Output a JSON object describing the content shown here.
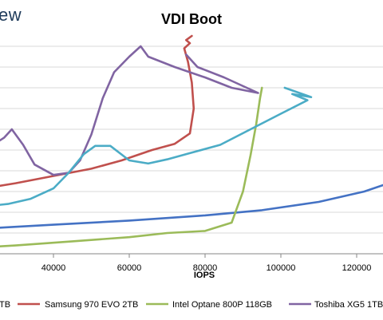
{
  "brand": {
    "text": "ew"
  },
  "chart_data": {
    "type": "line",
    "title": "VDI Boot",
    "xlabel": "IOPS",
    "ylabel": "",
    "xlim": [
      0,
      130000
    ],
    "ylim": [
      0,
      20
    ],
    "x_ticks": [
      "40000",
      "60000",
      "80000",
      "100000",
      "120000"
    ],
    "grid": "horizontal",
    "legend_position": "bottom",
    "legend_partial_first": "TB",
    "series": [
      {
        "name": "",
        "color": "#4472c4",
        "points": [
          [
            0,
            2.0
          ],
          [
            20000,
            2.4
          ],
          [
            40000,
            2.8
          ],
          [
            60000,
            3.2
          ],
          [
            80000,
            3.7
          ],
          [
            95000,
            4.2
          ],
          [
            110000,
            5.0
          ],
          [
            122000,
            6.0
          ],
          [
            130000,
            7.0
          ]
        ]
      },
      {
        "name": "Samsung 970 EVO 2TB",
        "color": "#c0504d",
        "points": [
          [
            0,
            5.0
          ],
          [
            10000,
            5.6
          ],
          [
            20000,
            6.2
          ],
          [
            30000,
            6.8
          ],
          [
            40000,
            7.5
          ],
          [
            50000,
            8.2
          ],
          [
            58000,
            9.0
          ],
          [
            66000,
            10.0
          ],
          [
            72000,
            10.6
          ],
          [
            76000,
            11.6
          ],
          [
            77000,
            14.0
          ],
          [
            76500,
            16.5
          ],
          [
            75500,
            18.5
          ],
          [
            74500,
            19.8
          ],
          [
            76000,
            20.3
          ],
          [
            75000,
            20.6
          ],
          [
            76500,
            21.0
          ]
        ]
      },
      {
        "name": "Intel Optane 800P 118GB",
        "color": "#9bbb59",
        "points": [
          [
            0,
            0.4
          ],
          [
            15000,
            0.5
          ],
          [
            30000,
            0.8
          ],
          [
            45000,
            1.2
          ],
          [
            60000,
            1.6
          ],
          [
            70000,
            2.0
          ],
          [
            80000,
            2.2
          ],
          [
            87000,
            3.0
          ],
          [
            90000,
            6.0
          ],
          [
            92000,
            9.5
          ],
          [
            93500,
            12.5
          ],
          [
            94500,
            15.0
          ],
          [
            95000,
            16.0
          ]
        ]
      },
      {
        "name": "Toshiba XG5 1TB",
        "color": "#8064a2",
        "points": [
          [
            0,
            10.5
          ],
          [
            4000,
            9.0
          ],
          [
            8000,
            8.2
          ],
          [
            12000,
            8.0
          ],
          [
            16000,
            8.8
          ],
          [
            22000,
            10.0
          ],
          [
            27000,
            11.2
          ],
          [
            29000,
            12.0
          ],
          [
            32000,
            10.5
          ],
          [
            35000,
            8.6
          ],
          [
            40000,
            7.6
          ],
          [
            44000,
            7.8
          ],
          [
            47000,
            9.0
          ],
          [
            50000,
            11.5
          ],
          [
            53000,
            15.0
          ],
          [
            56000,
            17.5
          ],
          [
            60000,
            19.0
          ],
          [
            63000,
            20.0
          ],
          [
            65000,
            19.0
          ],
          [
            72000,
            18.0
          ],
          [
            80000,
            17.0
          ],
          [
            87000,
            16.0
          ],
          [
            94000,
            15.5
          ],
          [
            85000,
            17.0
          ],
          [
            78000,
            18.0
          ],
          [
            75000,
            19.2
          ]
        ]
      },
      {
        "name": "",
        "color": "#4bacc6",
        "points": [
          [
            0,
            3.8
          ],
          [
            10000,
            4.1
          ],
          [
            20000,
            4.5
          ],
          [
            28000,
            4.8
          ],
          [
            34000,
            5.3
          ],
          [
            40000,
            6.3
          ],
          [
            44000,
            7.8
          ],
          [
            48000,
            9.6
          ],
          [
            51000,
            10.4
          ],
          [
            55000,
            10.4
          ],
          [
            60000,
            9.0
          ],
          [
            65000,
            8.7
          ],
          [
            70000,
            9.1
          ],
          [
            76000,
            9.7
          ],
          [
            84000,
            10.5
          ],
          [
            92000,
            12.0
          ],
          [
            100000,
            13.5
          ],
          [
            107000,
            14.8
          ],
          [
            103000,
            15.4
          ],
          [
            108000,
            15.1
          ],
          [
            101000,
            16.0
          ]
        ]
      }
    ]
  }
}
